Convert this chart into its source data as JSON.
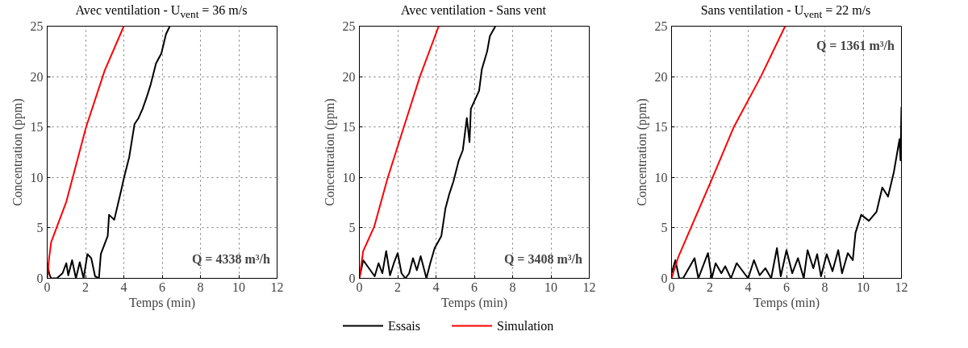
{
  "chart_data": [
    {
      "type": "line",
      "title": "Avec ventilation - U$_{vent}$ = 36 m/s",
      "xlabel": "Temps (min)",
      "ylabel": "Concentration (ppm)",
      "xlim": [
        0,
        12
      ],
      "ylim": [
        0,
        25
      ],
      "xticks": [
        0,
        2,
        4,
        6,
        8,
        10,
        12
      ],
      "yticks": [
        0,
        5,
        10,
        15,
        20,
        25
      ],
      "grid": true,
      "line_style": "solid",
      "annotations": [
        "Q = 4338 m³/h"
      ],
      "series": [
        {
          "color": "#000000",
          "x": [
            0,
            0.1,
            0.2,
            0.5,
            0.8,
            1.0,
            1.1,
            1.3,
            1.5,
            1.7,
            1.9,
            2.1,
            2.3,
            2.5,
            2.7,
            2.8,
            3.16,
            3.23,
            3.5,
            3.86,
            4.0,
            4.28,
            4.56,
            4.77,
            4.98,
            5.2,
            5.4,
            5.68,
            5.96,
            6.2,
            6.4
          ],
          "values": [
            1.5,
            0.5,
            0,
            0,
            0.5,
            1.5,
            0.3,
            1.8,
            0,
            1.6,
            0,
            2.4,
            2,
            0.2,
            0,
            2.4,
            4.2,
            6.3,
            5.8,
            8.7,
            9.9,
            12,
            15.3,
            15.9,
            16.8,
            18,
            19.2,
            21.3,
            22.3,
            24.2,
            25
          ]
        },
        {
          "color": "#ff0000",
          "x": [
            0,
            0.1,
            0.21,
            1.0,
            2.03,
            3.0,
            4.0
          ],
          "values": [
            0,
            2,
            3.6,
            7.6,
            15,
            20.6,
            25
          ]
        }
      ]
    },
    {
      "type": "line",
      "title": "Avec ventilation - Sans vent",
      "xlabel": "Temps (min)",
      "ylabel": "Concentration (ppm)",
      "xlim": [
        0,
        12
      ],
      "ylim": [
        0,
        25
      ],
      "xticks": [
        0,
        2,
        4,
        6,
        8,
        10,
        12
      ],
      "yticks": [
        0,
        5,
        10,
        15,
        20,
        25
      ],
      "grid": true,
      "legend": "bottom",
      "line_style": "solid",
      "annotations": [
        "Q = 3408 m³/h"
      ],
      "series": [
        {
          "name": "Essais",
          "color": "#000000",
          "x": [
            0,
            0.2,
            0.5,
            0.8,
            1.0,
            1.2,
            1.4,
            1.6,
            1.8,
            2.0,
            2.2,
            2.4,
            2.6,
            2.8,
            3.0,
            3.2,
            3.5,
            3.7,
            3.93,
            4.28,
            4.49,
            4.7,
            4.91,
            5.19,
            5.4,
            5.61,
            5.75,
            5.82,
            6.25,
            6.39,
            6.67,
            6.81,
            7.1
          ],
          "values": [
            0,
            1.8,
            1,
            0.2,
            1.5,
            0.5,
            2.7,
            0.3,
            1.5,
            2.5,
            0.5,
            0,
            0.5,
            2,
            0.8,
            2.2,
            0,
            1.5,
            3,
            4.2,
            6.9,
            8.4,
            9.6,
            11.7,
            12.7,
            15.9,
            13.5,
            16.8,
            18.6,
            20.7,
            22.5,
            24,
            25
          ]
        },
        {
          "name": "Simulation",
          "color": "#ff0000",
          "x": [
            0,
            0.2,
            0.77,
            1.47,
            2.32,
            3.16,
            4.14
          ],
          "values": [
            0,
            2.7,
            5.1,
            9.9,
            15,
            20,
            25
          ]
        }
      ]
    },
    {
      "type": "line",
      "title": "Sans ventilation - U$_{vent}$ = 22 m/s",
      "xlabel": "Temps (min)",
      "ylabel": "Concentration (ppm)",
      "xlim": [
        0,
        12
      ],
      "ylim": [
        0,
        25
      ],
      "xticks": [
        0,
        2,
        4,
        6,
        8,
        10,
        12
      ],
      "yticks": [
        0,
        5,
        10,
        15,
        20,
        25
      ],
      "grid": true,
      "line_style": "solid",
      "annotations": [
        "Q = 1361 m³/h"
      ],
      "series": [
        {
          "color": "#000000",
          "x": [
            0,
            0.2,
            0.4,
            0.6,
            0.9,
            1.2,
            1.4,
            1.9,
            2.1,
            2.3,
            2.6,
            2.8,
            3.1,
            3.4,
            3.6,
            4.0,
            4.3,
            4.6,
            4.9,
            5.2,
            5.5,
            5.7,
            6.0,
            6.3,
            6.6,
            6.9,
            7.1,
            7.4,
            7.6,
            7.8,
            8.1,
            8.4,
            8.7,
            8.9,
            9.2,
            9.46,
            9.6,
            9.9,
            10.3,
            10.7,
            11.0,
            11.3,
            11.6,
            11.9,
            11.95,
            12
          ],
          "values": [
            0.5,
            1.8,
            0,
            0,
            1,
            2,
            0,
            2.5,
            0,
            1.5,
            0.5,
            1.2,
            0,
            1.5,
            1,
            0,
            1.8,
            0.3,
            1,
            0,
            3,
            0.2,
            2.8,
            0.5,
            2,
            0,
            2.8,
            1,
            2.4,
            0.2,
            2.4,
            0.7,
            2.8,
            0.5,
            2.5,
            1.8,
            4.5,
            6.3,
            5.7,
            6.6,
            9,
            8.1,
            10.5,
            13.8,
            11.7,
            17
          ]
        },
        {
          "color": "#ff0000",
          "x": [
            0,
            0.35,
            2.12,
            3.25,
            4.66,
            5.93
          ],
          "values": [
            0,
            2.1,
            9.9,
            15,
            20,
            25
          ]
        }
      ]
    }
  ]
}
